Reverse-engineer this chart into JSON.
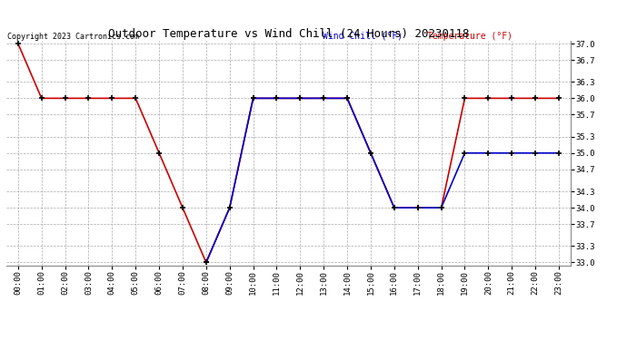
{
  "title": "Outdoor Temperature vs Wind Chill (24 Hours) 20230118",
  "copyright": "Copyright 2023 Cartronics.com",
  "legend_wind_chill": "Wind Chill (°F)",
  "legend_temperature": "Temperature (°F)",
  "x_labels": [
    "00:00",
    "01:00",
    "02:00",
    "03:00",
    "04:00",
    "05:00",
    "06:00",
    "07:00",
    "08:00",
    "09:00",
    "10:00",
    "11:00",
    "12:00",
    "13:00",
    "14:00",
    "15:00",
    "16:00",
    "17:00",
    "18:00",
    "19:00",
    "20:00",
    "21:00",
    "22:00",
    "23:00"
  ],
  "temperature": [
    37.0,
    36.0,
    36.0,
    36.0,
    36.0,
    36.0,
    35.0,
    34.0,
    33.0,
    34.0,
    36.0,
    36.0,
    36.0,
    36.0,
    36.0,
    35.0,
    34.0,
    34.0,
    34.0,
    36.0,
    36.0,
    36.0,
    36.0,
    36.0
  ],
  "wind_chill": [
    null,
    null,
    null,
    null,
    null,
    null,
    null,
    null,
    33.0,
    34.0,
    36.0,
    36.0,
    36.0,
    36.0,
    36.0,
    35.0,
    34.0,
    34.0,
    34.0,
    35.0,
    35.0,
    35.0,
    35.0,
    35.0
  ],
  "ylim_min": 33.0,
  "ylim_max": 37.0,
  "ytick_values": [
    33.0,
    33.3,
    33.7,
    34.0,
    34.3,
    34.7,
    35.0,
    35.3,
    35.7,
    36.0,
    36.3,
    36.7,
    37.0
  ],
  "ytick_labels": [
    "33.0",
    "33.3",
    "33.7",
    "34.0",
    "34.3",
    "34.7",
    "35.0",
    "35.3",
    "35.7",
    "36.0",
    "36.3",
    "36.7",
    "37.0"
  ],
  "bg_color": "#ffffff",
  "temp_color": "#cc0000",
  "wind_color": "#0000cc",
  "grid_color": "#aaaaaa",
  "title_color": "#000000",
  "copyright_color": "#000000",
  "marker_color": "#000000",
  "marker_size": 4,
  "marker_ew": 1.2,
  "line_width": 1.2,
  "font_size_title": 9,
  "font_size_ticks": 6.5,
  "font_size_legend": 7,
  "font_size_copyright": 6
}
